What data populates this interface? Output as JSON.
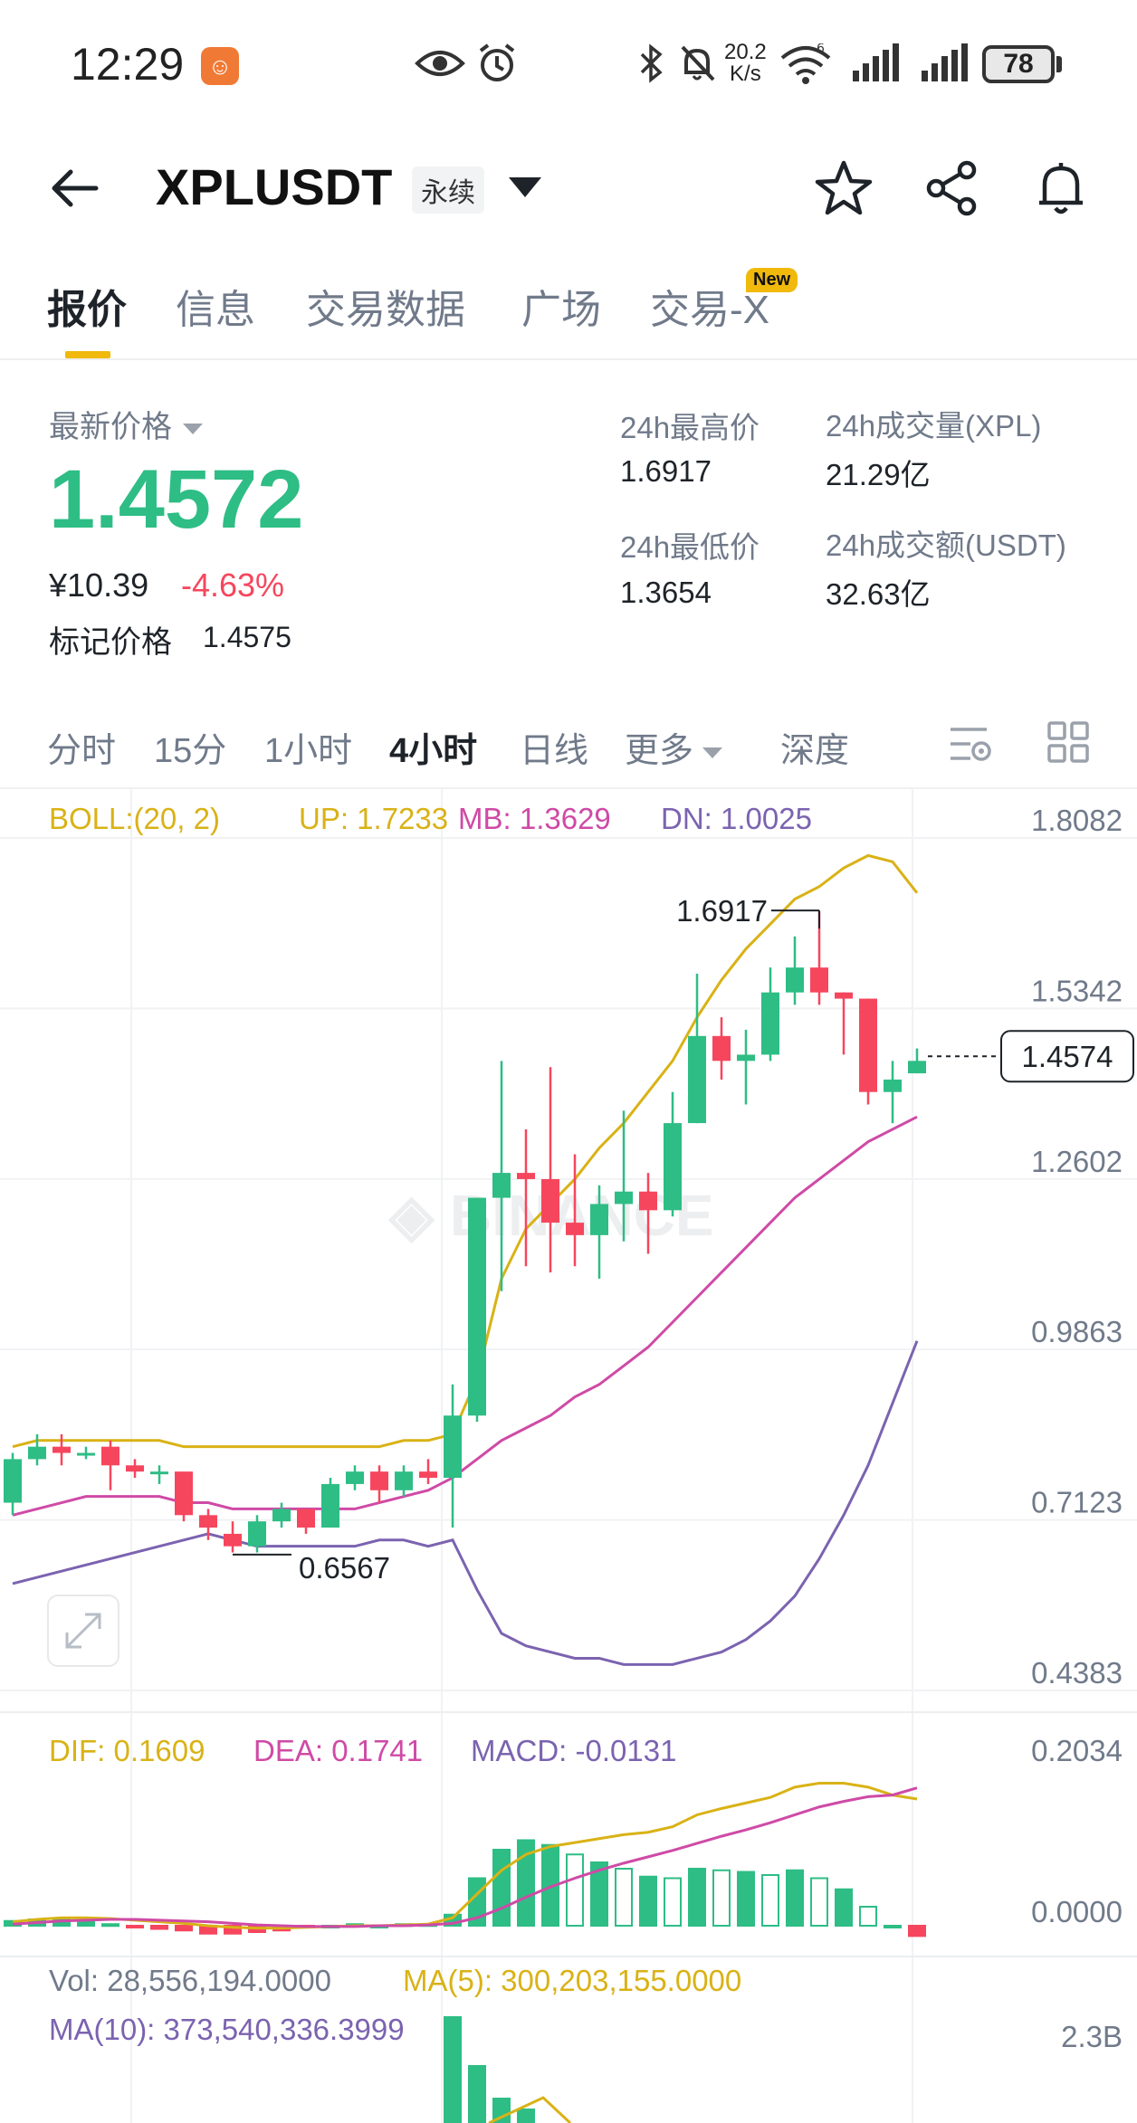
{
  "status_bar": {
    "time": "12:29",
    "speed_top": "20.2",
    "speed_bottom": "K/s",
    "battery": "78",
    "wifi_tag": "6"
  },
  "header": {
    "symbol": "XPLUSDT",
    "contract_tag": "永续"
  },
  "tabs": [
    {
      "label": "报价",
      "active": true
    },
    {
      "label": "信息"
    },
    {
      "label": "交易数据"
    },
    {
      "label": "广场"
    },
    {
      "label": "交易-X",
      "badge": "New"
    }
  ],
  "price": {
    "latest_label": "最新价格",
    "last": "1.4572",
    "cny": "¥10.39",
    "change": "-4.63%",
    "mark_label": "标记价格",
    "mark_value": "1.4575"
  },
  "stats": {
    "high_label": "24h最高价",
    "high": "1.6917",
    "low_label": "24h最低价",
    "low": "1.3654",
    "vol_label": "24h成交量(XPL)",
    "vol": "21.29亿",
    "turnover_label": "24h成交额(USDT)",
    "turnover": "32.63亿"
  },
  "intervals": [
    "分时",
    "15分",
    "1小时",
    "4小时",
    "日线",
    "更多",
    "深度"
  ],
  "active_interval": "4小时",
  "boll": {
    "label": "BOLL:(20, 2)",
    "up": "UP: 1.7233",
    "mb": "MB: 1.3629",
    "dn": "DN: 1.0025"
  },
  "macd": {
    "dif": "DIF: 0.1609",
    "dea": "DEA: 0.1741",
    "macd": "MACD: -0.0131"
  },
  "vol": {
    "vol": "Vol: 28,556,194.0000",
    "ma5": "MA(5): 300,203,155.0000",
    "ma10": "MA(10): 373,540,336.3999",
    "axis_top": "2.3B"
  },
  "colors": {
    "up": "#2ebd85",
    "down": "#f6465d",
    "accent": "#f0b90b",
    "boll_up": "#d9b216",
    "boll_mb": "#cf4aa6",
    "boll_dn": "#7b63b0"
  },
  "chart_data": {
    "type": "candlestick",
    "price_axis": [
      "1.8082",
      "1.5342",
      "1.2602",
      "0.9863",
      "0.7123",
      "0.4383"
    ],
    "ylim": [
      0.4383,
      1.8082
    ],
    "current_price_label": "1.4574",
    "current_price": 1.4574,
    "high_marker": {
      "label": "1.6917",
      "value": 1.6917
    },
    "low_marker": {
      "label": "0.6567",
      "value": 0.6567
    },
    "candles": [
      [
        0.74,
        0.81,
        0.72,
        0.82
      ],
      [
        0.81,
        0.83,
        0.8,
        0.85
      ],
      [
        0.83,
        0.82,
        0.8,
        0.85
      ],
      [
        0.82,
        0.82,
        0.81,
        0.83
      ],
      [
        0.83,
        0.8,
        0.76,
        0.84
      ],
      [
        0.8,
        0.79,
        0.78,
        0.81
      ],
      [
        0.79,
        0.79,
        0.77,
        0.8
      ],
      [
        0.79,
        0.72,
        0.71,
        0.79
      ],
      [
        0.72,
        0.7,
        0.68,
        0.73
      ],
      [
        0.69,
        0.67,
        0.66,
        0.71
      ],
      [
        0.67,
        0.71,
        0.66,
        0.72
      ],
      [
        0.71,
        0.73,
        0.7,
        0.74
      ],
      [
        0.73,
        0.7,
        0.69,
        0.73
      ],
      [
        0.7,
        0.77,
        0.7,
        0.78
      ],
      [
        0.77,
        0.79,
        0.76,
        0.8
      ],
      [
        0.79,
        0.76,
        0.74,
        0.8
      ],
      [
        0.76,
        0.79,
        0.75,
        0.8
      ],
      [
        0.79,
        0.78,
        0.77,
        0.81
      ],
      [
        0.78,
        0.88,
        0.7,
        0.93
      ],
      [
        0.88,
        1.23,
        0.87,
        1.23
      ],
      [
        1.23,
        1.27,
        1.08,
        1.45
      ],
      [
        1.27,
        1.26,
        1.12,
        1.34
      ],
      [
        1.26,
        1.19,
        1.11,
        1.44
      ],
      [
        1.19,
        1.17,
        1.12,
        1.3
      ],
      [
        1.17,
        1.22,
        1.1,
        1.25
      ],
      [
        1.22,
        1.24,
        1.16,
        1.37
      ],
      [
        1.24,
        1.21,
        1.14,
        1.27
      ],
      [
        1.21,
        1.35,
        1.2,
        1.4
      ],
      [
        1.35,
        1.49,
        1.35,
        1.59
      ],
      [
        1.49,
        1.45,
        1.42,
        1.52
      ],
      [
        1.45,
        1.46,
        1.38,
        1.5
      ],
      [
        1.46,
        1.56,
        1.45,
        1.6
      ],
      [
        1.56,
        1.6,
        1.54,
        1.65
      ],
      [
        1.6,
        1.56,
        1.54,
        1.69
      ],
      [
        1.56,
        1.55,
        1.46,
        1.56
      ],
      [
        1.55,
        1.4,
        1.38,
        1.55
      ],
      [
        1.4,
        1.42,
        1.35,
        1.45
      ],
      [
        1.43,
        1.45,
        1.43,
        1.47
      ]
    ],
    "boll_up": [
      0.83,
      0.84,
      0.84,
      0.84,
      0.84,
      0.84,
      0.84,
      0.83,
      0.83,
      0.83,
      0.83,
      0.83,
      0.83,
      0.83,
      0.83,
      0.83,
      0.84,
      0.84,
      0.85,
      0.94,
      1.1,
      1.18,
      1.22,
      1.26,
      1.31,
      1.35,
      1.4,
      1.45,
      1.52,
      1.58,
      1.63,
      1.67,
      1.71,
      1.73,
      1.76,
      1.78,
      1.77,
      1.72
    ],
    "boll_mb": [
      0.72,
      0.73,
      0.74,
      0.75,
      0.75,
      0.75,
      0.75,
      0.74,
      0.74,
      0.73,
      0.73,
      0.73,
      0.73,
      0.73,
      0.73,
      0.74,
      0.75,
      0.76,
      0.78,
      0.81,
      0.84,
      0.86,
      0.88,
      0.91,
      0.93,
      0.96,
      0.99,
      1.03,
      1.07,
      1.11,
      1.15,
      1.19,
      1.23,
      1.26,
      1.29,
      1.32,
      1.34,
      1.36
    ],
    "boll_dn": [
      0.61,
      0.62,
      0.63,
      0.64,
      0.65,
      0.66,
      0.67,
      0.68,
      0.69,
      0.68,
      0.67,
      0.67,
      0.67,
      0.67,
      0.67,
      0.68,
      0.68,
      0.67,
      0.68,
      0.6,
      0.53,
      0.51,
      0.5,
      0.49,
      0.49,
      0.48,
      0.48,
      0.48,
      0.49,
      0.5,
      0.52,
      0.55,
      0.59,
      0.65,
      0.72,
      0.8,
      0.9,
      1.0
    ],
    "macd_axis": [
      "0.2034",
      "0.0000"
    ],
    "macd_ylim": [
      -0.03,
      0.2034
    ],
    "dif": [
      0.005,
      0.008,
      0.01,
      0.01,
      0.009,
      0.007,
      0.005,
      0.003,
      0.0,
      -0.002,
      -0.003,
      -0.003,
      -0.002,
      -0.001,
      0.0,
      0.0,
      0.001,
      0.002,
      0.01,
      0.04,
      0.07,
      0.09,
      0.1,
      0.105,
      0.11,
      0.115,
      0.118,
      0.125,
      0.14,
      0.148,
      0.155,
      0.162,
      0.175,
      0.18,
      0.18,
      0.175,
      0.165,
      0.16
    ],
    "dea": [
      0.002,
      0.004,
      0.006,
      0.007,
      0.008,
      0.008,
      0.007,
      0.006,
      0.005,
      0.003,
      0.001,
      0.0,
      -0.001,
      -0.001,
      -0.001,
      0.0,
      0.0,
      0.001,
      0.003,
      0.01,
      0.022,
      0.036,
      0.049,
      0.06,
      0.07,
      0.079,
      0.087,
      0.095,
      0.104,
      0.113,
      0.121,
      0.13,
      0.14,
      0.15,
      0.157,
      0.163,
      0.165,
      0.174
    ],
    "macd_hist": [
      0.006,
      0.008,
      0.008,
      0.006,
      0.002,
      -0.002,
      -0.004,
      -0.006,
      -0.01,
      -0.01,
      -0.008,
      -0.006,
      -0.002,
      0.0,
      0.002,
      0.0,
      0.002,
      0.002,
      0.014,
      0.06,
      0.096,
      0.108,
      0.102,
      0.09,
      0.08,
      0.072,
      0.062,
      0.06,
      0.072,
      0.07,
      0.068,
      0.064,
      0.07,
      0.06,
      0.046,
      0.024,
      0.0,
      -0.013
    ]
  }
}
